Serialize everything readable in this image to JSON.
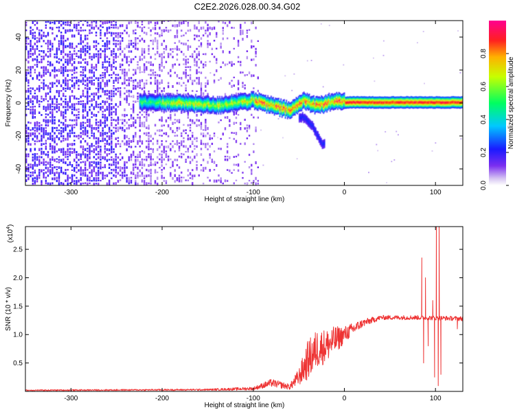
{
  "title": "C2E2.2026.028.00.34.G02",
  "chart_data": [
    {
      "type": "heatmap",
      "xlabel": "Height of straight line (km)",
      "ylabel": "Frequency (Hz)",
      "xlim": [
        -350,
        130
      ],
      "ylim": [
        -50,
        50
      ],
      "xticks": [
        -300,
        -200,
        -100,
        0,
        100
      ],
      "yticks": [
        -40,
        -20,
        0,
        20,
        40
      ],
      "colorbar": {
        "label": "Normalized spectral amplitude",
        "ticks": [
          "0.0",
          "0.2",
          "0.4",
          "0.6",
          "0.8"
        ],
        "range": [
          0,
          1
        ]
      },
      "ridge": [
        {
          "x": -225,
          "f": 0
        },
        {
          "x": -200,
          "f": 0
        },
        {
          "x": -160,
          "f": -1
        },
        {
          "x": -140,
          "f": -2
        },
        {
          "x": -120,
          "f": 0
        },
        {
          "x": -100,
          "f": 1
        },
        {
          "x": -80,
          "f": -2
        },
        {
          "x": -60,
          "f": -5
        },
        {
          "x": -45,
          "f": 1
        },
        {
          "x": -30,
          "f": -2
        },
        {
          "x": -10,
          "f": 1
        },
        {
          "x": 0,
          "f": 0
        },
        {
          "x": 50,
          "f": 0
        },
        {
          "x": 80,
          "f": 0
        },
        {
          "x": 100,
          "f": 0
        },
        {
          "x": 130,
          "f": 0
        }
      ],
      "branch": [
        {
          "x": -45,
          "f": -8
        },
        {
          "x": -35,
          "f": -14
        },
        {
          "x": -25,
          "f": -24
        }
      ],
      "grid": false,
      "legend": "none"
    },
    {
      "type": "line",
      "xlabel": "Height of straight line (km)",
      "ylabel": "SNR (10 * v/v)",
      "y_multiplier": "(x10",
      "y_multiplier_exp": "4",
      "xlim": [
        -350,
        130
      ],
      "ylim": [
        0,
        2.9
      ],
      "xticks": [
        -300,
        -200,
        -100,
        0,
        100
      ],
      "yticks": [
        0.5,
        1.0,
        1.5,
        2.0,
        2.5
      ],
      "color": "#ee3333",
      "profile": [
        {
          "x": -350,
          "y": 0.02,
          "n": 0.01
        },
        {
          "x": -150,
          "y": 0.03,
          "n": 0.015
        },
        {
          "x": -100,
          "y": 0.05,
          "n": 0.03
        },
        {
          "x": -80,
          "y": 0.15,
          "n": 0.07
        },
        {
          "x": -60,
          "y": 0.08,
          "n": 0.05
        },
        {
          "x": -50,
          "y": 0.25,
          "n": 0.15
        },
        {
          "x": -40,
          "y": 0.55,
          "n": 0.35
        },
        {
          "x": -30,
          "y": 0.75,
          "n": 0.35
        },
        {
          "x": -20,
          "y": 0.8,
          "n": 0.3
        },
        {
          "x": -10,
          "y": 0.9,
          "n": 0.25
        },
        {
          "x": 0,
          "y": 1.0,
          "n": 0.15
        },
        {
          "x": 20,
          "y": 1.2,
          "n": 0.07
        },
        {
          "x": 40,
          "y": 1.3,
          "n": 0.04
        },
        {
          "x": 80,
          "y": 1.3,
          "n": 0.04
        },
        {
          "x": 130,
          "y": 1.28,
          "n": 0.04
        }
      ],
      "spikes": [
        {
          "x": 85,
          "y": 2.35
        },
        {
          "x": 87,
          "y": 0.5
        },
        {
          "x": 89,
          "y": 2.0
        },
        {
          "x": 92,
          "y": 0.8
        },
        {
          "x": 97,
          "y": 1.6
        },
        {
          "x": 99,
          "y": 0.25
        },
        {
          "x": 101,
          "y": 2.9
        },
        {
          "x": 103,
          "y": 0.1
        },
        {
          "x": 104,
          "y": 2.9
        },
        {
          "x": 106,
          "y": 0.3
        },
        {
          "x": 124,
          "y": 1.1
        }
      ],
      "grid": false,
      "legend": "none"
    }
  ]
}
